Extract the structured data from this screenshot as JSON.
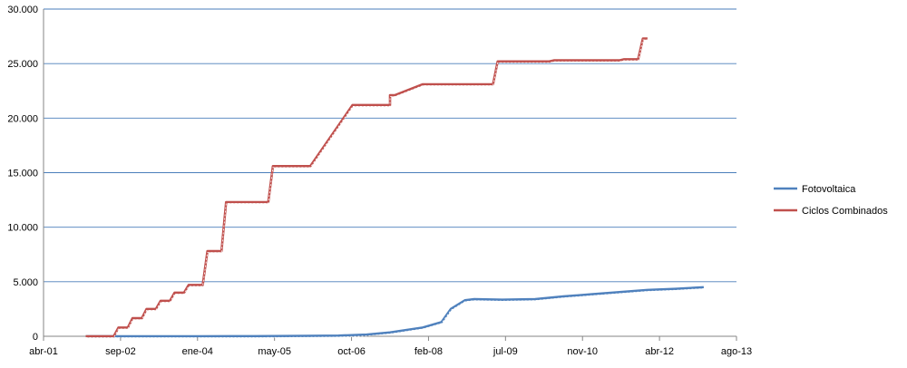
{
  "chart_data": {
    "type": "line",
    "title": "",
    "xlabel": "",
    "ylabel": "",
    "xlim": [
      "2001-04",
      "2013-08"
    ],
    "ylim": [
      0,
      30000
    ],
    "grid": true,
    "legend_position": "right",
    "x_tick_labels": [
      "abr-01",
      "sep-02",
      "ene-04",
      "may-05",
      "oct-06",
      "feb-08",
      "jul-09",
      "nov-10",
      "abr-12",
      "ago-13"
    ],
    "y_tick_labels": [
      "0",
      "5.000",
      "10.000",
      "15.000",
      "20.000",
      "25.000",
      "30.000"
    ],
    "series": [
      {
        "name": "Fotovoltaica",
        "color": "#4F81BD",
        "x": [
          "2002-01",
          "2003-01",
          "2004-01",
          "2005-01",
          "2006-01",
          "2006-07",
          "2007-01",
          "2007-06",
          "2008-01",
          "2008-05",
          "2008-07",
          "2008-10",
          "2008-12",
          "2009-06",
          "2010-01",
          "2010-07",
          "2011-01",
          "2011-07",
          "2012-01",
          "2012-07",
          "2013-01"
        ],
        "y": [
          0,
          0,
          0,
          10,
          30,
          60,
          150,
          350,
          800,
          1300,
          2500,
          3300,
          3400,
          3350,
          3400,
          3650,
          3850,
          4050,
          4250,
          4350,
          4500
        ]
      },
      {
        "name": "Ciclos Combinados",
        "color": "#C0504D",
        "x": [
          "2002-01",
          "2002-07",
          "2002-08",
          "2002-10",
          "2002-11",
          "2003-01",
          "2003-02",
          "2003-04",
          "2003-05",
          "2003-07",
          "2003-08",
          "2003-10",
          "2003-11",
          "2004-02",
          "2004-03",
          "2004-06",
          "2004-07",
          "2005-04",
          "2005-05",
          "2005-12",
          "2006-01",
          "2006-10",
          "2006-11",
          "2007-05",
          "2007-06",
          "2007-06",
          "2007-07",
          "2008-01",
          "2008-02",
          "2009-04",
          "2009-05",
          "2010-04",
          "2010-05",
          "2011-07",
          "2011-08",
          "2011-11",
          "2011-12",
          "2012-01"
        ],
        "y": [
          0,
          0,
          800,
          800,
          1650,
          1650,
          2500,
          2500,
          3250,
          3250,
          4000,
          4000,
          4700,
          4700,
          7800,
          7800,
          12300,
          12300,
          15600,
          15600,
          15600,
          21200,
          21200,
          21200,
          21200,
          22100,
          22100,
          23100,
          23100,
          23100,
          25200,
          25200,
          25300,
          25300,
          25400,
          25400,
          27300,
          27300
        ]
      }
    ]
  }
}
